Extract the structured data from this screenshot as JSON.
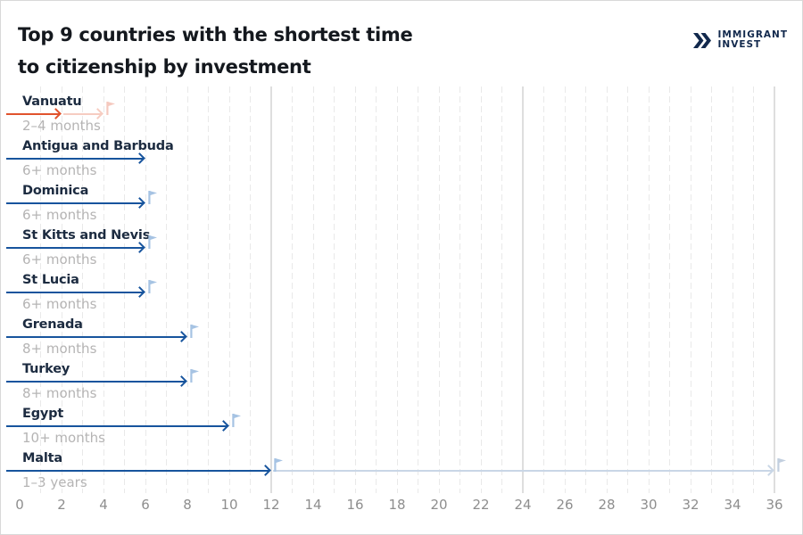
{
  "header": {
    "title_line1": "Top 9 countries with the shortest time",
    "title_line2": "to citizenship by investment",
    "logo": {
      "line1": "IMMIGRANT",
      "line2": "INVEST"
    }
  },
  "chart_data": {
    "type": "bar",
    "orientation": "horizontal",
    "title": "Top 9 countries with the shortest time to citizenship by investment",
    "x_unit": "months",
    "xlim": [
      0,
      36
    ],
    "x_ticks": [
      0,
      2,
      4,
      6,
      8,
      10,
      12,
      14,
      16,
      18,
      20,
      22,
      24,
      26,
      28,
      30,
      32,
      34,
      36
    ],
    "grid": {
      "minor_dashed_every_months": 1,
      "major_solid_every_months": 12
    },
    "legend": "none",
    "rows": [
      {
        "country": "Vanuatu",
        "duration_label": "2–4 months",
        "min_months": 2,
        "max_months": 4,
        "palette": "orange",
        "segments": [
          {
            "from": 0,
            "to": 2,
            "style": "solid"
          },
          {
            "from": 2,
            "to": 4,
            "style": "faded"
          }
        ],
        "flags": [
          {
            "at_months": 4,
            "style": "faded"
          }
        ]
      },
      {
        "country": "Antigua and Barbuda",
        "duration_label": "6+ months",
        "min_months": 6,
        "max_months": null,
        "palette": "blue",
        "segments": [
          {
            "from": 0,
            "to": 6,
            "style": "solid"
          }
        ],
        "flags": []
      },
      {
        "country": "Dominica",
        "duration_label": "6+ months",
        "min_months": 6,
        "max_months": null,
        "palette": "blue",
        "segments": [
          {
            "from": 0,
            "to": 6,
            "style": "solid"
          }
        ],
        "flags": [
          {
            "at_months": 6,
            "style": "solid"
          }
        ]
      },
      {
        "country": "St Kitts and Nevis",
        "duration_label": "6+ months",
        "min_months": 6,
        "max_months": null,
        "palette": "blue",
        "segments": [
          {
            "from": 0,
            "to": 6,
            "style": "solid"
          }
        ],
        "flags": [
          {
            "at_months": 6,
            "style": "solid"
          }
        ]
      },
      {
        "country": "St Lucia",
        "duration_label": "6+ months",
        "min_months": 6,
        "max_months": null,
        "palette": "blue",
        "segments": [
          {
            "from": 0,
            "to": 6,
            "style": "solid"
          }
        ],
        "flags": [
          {
            "at_months": 6,
            "style": "solid"
          }
        ]
      },
      {
        "country": "Grenada",
        "duration_label": "8+ months",
        "min_months": 8,
        "max_months": null,
        "palette": "blue",
        "segments": [
          {
            "from": 0,
            "to": 8,
            "style": "solid"
          }
        ],
        "flags": [
          {
            "at_months": 8,
            "style": "solid"
          }
        ]
      },
      {
        "country": "Turkey",
        "duration_label": "8+ months",
        "min_months": 8,
        "max_months": null,
        "palette": "blue",
        "segments": [
          {
            "from": 0,
            "to": 8,
            "style": "solid"
          }
        ],
        "flags": [
          {
            "at_months": 8,
            "style": "solid"
          }
        ]
      },
      {
        "country": "Egypt",
        "duration_label": "10+ months",
        "min_months": 10,
        "max_months": null,
        "palette": "blue",
        "segments": [
          {
            "from": 0,
            "to": 10,
            "style": "solid"
          }
        ],
        "flags": [
          {
            "at_months": 10,
            "style": "solid"
          }
        ]
      },
      {
        "country": "Malta",
        "duration_label": "1–3 years",
        "min_months": 12,
        "max_months": 36,
        "palette": "blue",
        "segments": [
          {
            "from": 0,
            "to": 12,
            "style": "solid"
          },
          {
            "from": 12,
            "to": 36,
            "style": "faded"
          }
        ],
        "flags": [
          {
            "at_months": 12,
            "style": "solid"
          },
          {
            "at_months": 36,
            "style": "faded"
          }
        ]
      }
    ]
  },
  "colors": {
    "blue_solid": "#17549d",
    "blue_faded": "#c9d6e6",
    "orange_solid": "#e1532d",
    "orange_faded": "#f6ccc1",
    "flag_blue": "#a6c3e3",
    "flag_blue_faded": "#c2cfdf",
    "flag_pink": "#f5c9bf",
    "title_text": "#14181e",
    "country_text": "#1c2b40",
    "duration_text": "#b5b4b4",
    "axis_text": "#8e8e8e",
    "grid_minor": "#e9e9e9",
    "grid_major": "#dedede",
    "logo_navy": "#12294d",
    "background": "#ffffff",
    "border": "#d8d8d8"
  }
}
